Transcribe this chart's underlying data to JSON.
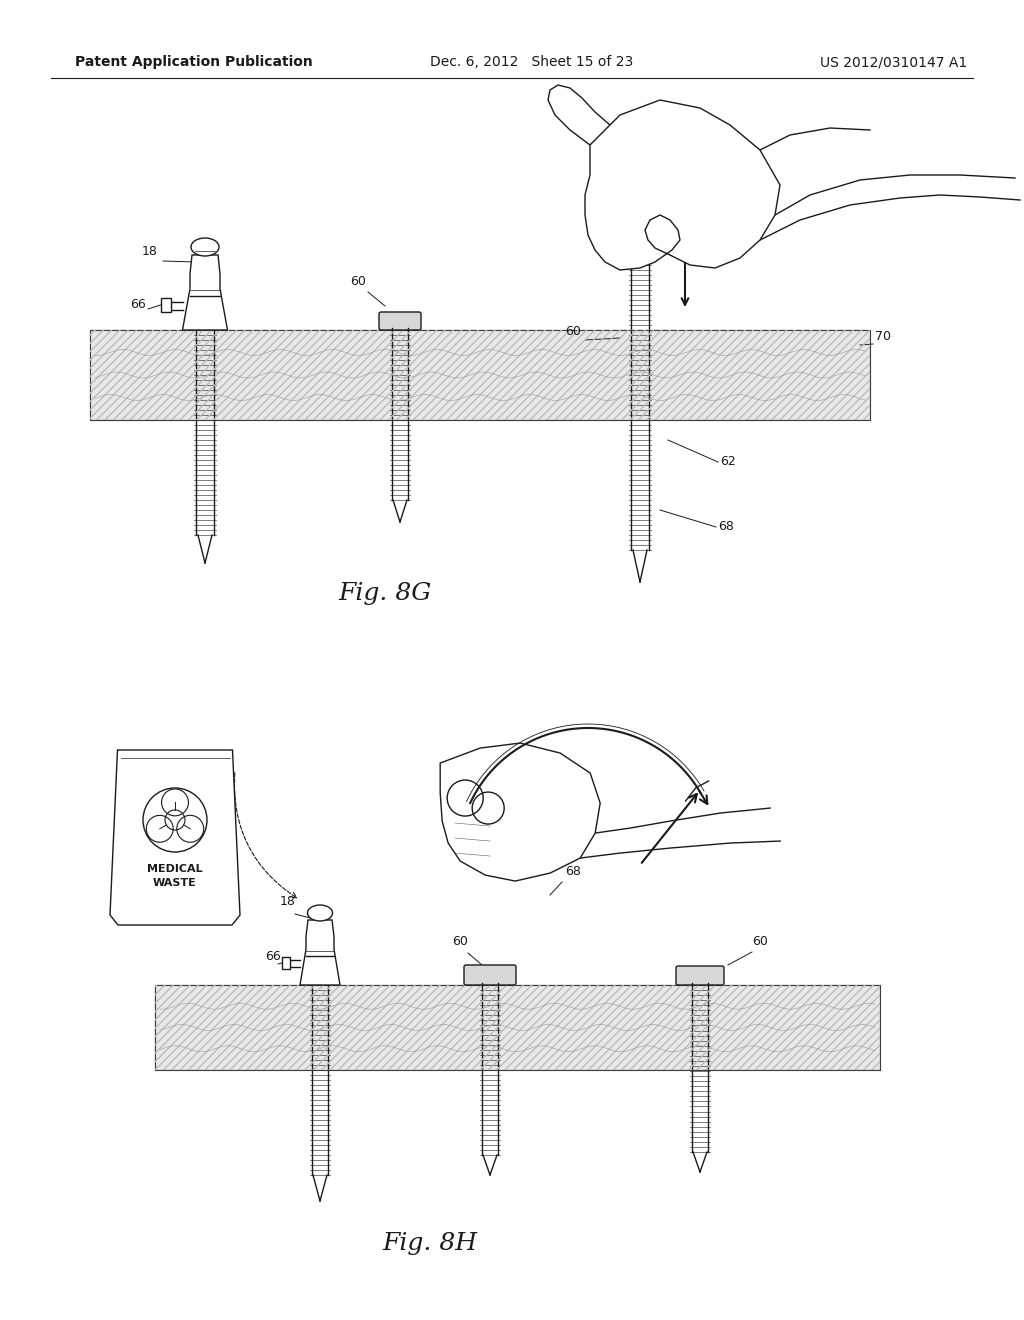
{
  "background_color": "#ffffff",
  "header_left": "Patent Application Publication",
  "header_center": "Dec. 6, 2012   Sheet 15 of 23",
  "header_right": "US 2012/0310147 A1",
  "header_fontsize": 10,
  "fig8G_label": "Fig. 8G",
  "fig8H_label": "Fig. 8H",
  "color_main": "#1a1a1a",
  "color_tissue": "#d8d8d8",
  "lw_main": 1.0,
  "lw_thin": 0.6,
  "lw_thick": 1.5
}
